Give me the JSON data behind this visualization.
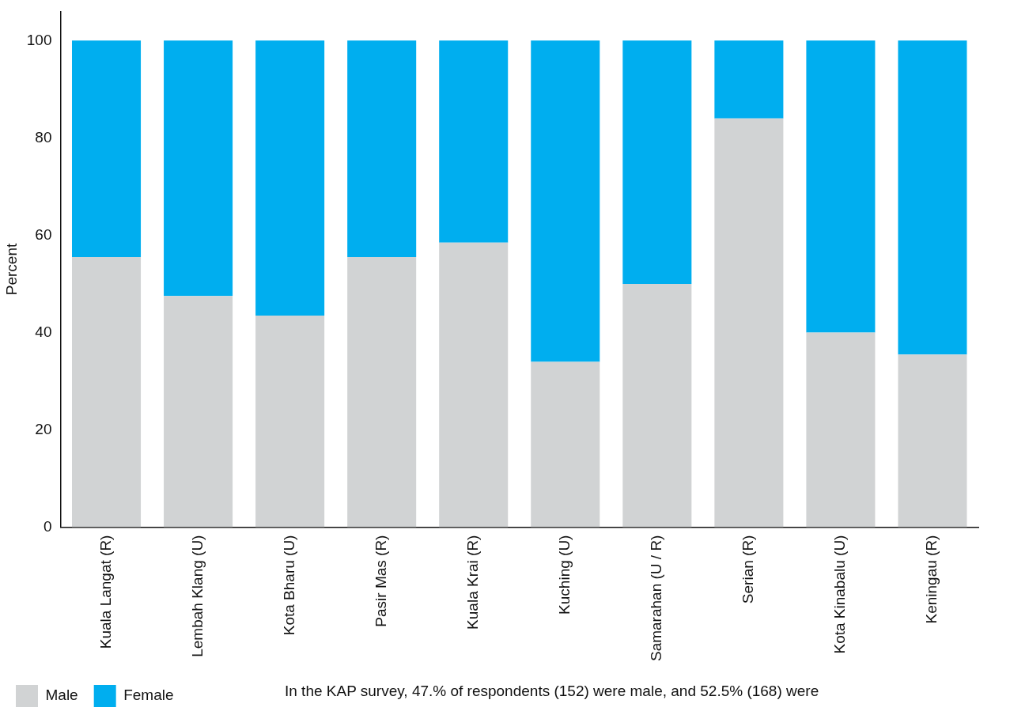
{
  "chart_data": {
    "type": "bar",
    "stacked": true,
    "ylabel": "Percent",
    "categories": [
      "Kuala Langat (R)",
      "Lembah Klang (U)",
      "Kota Bharu (U)",
      "Pasir Mas (R)",
      "Kuala Krai (R)",
      "Kuching (U)",
      "Samarahan (U / R)",
      "Serian (R)",
      "Kota Kinabalu (U)",
      "Keningau (R)"
    ],
    "series": [
      {
        "name": "Male",
        "color": "#d1d3d4",
        "values": [
          55.5,
          47.5,
          43.5,
          55.5,
          58.5,
          34,
          50,
          84,
          40,
          35.5
        ]
      },
      {
        "name": "Female",
        "color": "#00aeef",
        "values": [
          44.5,
          52.5,
          56.5,
          44.5,
          41.5,
          66,
          50,
          16,
          60,
          64.5
        ]
      }
    ],
    "ylim": [
      0,
      106
    ],
    "yticks": [
      0,
      20,
      40,
      60,
      80,
      100
    ],
    "grid": false,
    "legend": "bottom left",
    "annotations": [
      "In the KAP survey, 47.% of respondents (152) were male, and 52.5% (168) were"
    ]
  }
}
